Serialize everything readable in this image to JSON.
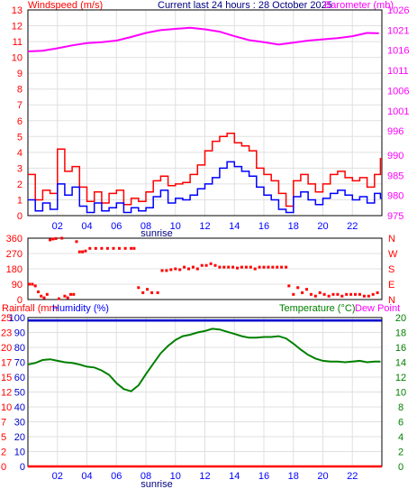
{
  "header": {
    "current_label": "Current last 24 hours : 28 October 2025"
  },
  "colors": {
    "wind_avg": "#0000ff",
    "wind_gust": "#ff0000",
    "barometer": "#ff00ff",
    "direction": "#ff0000",
    "temperature": "#008000",
    "dewpoint": "#ff00ff",
    "humidity": "#0000cc",
    "rainfall": "#ff0000",
    "axis_left_top": "#ff0000",
    "axis_left_bottom": "#0000ff",
    "axis_right_green": "#008000"
  },
  "chart_data": [
    {
      "type": "line",
      "name": "wind-barometer",
      "title": "Windspeed (m/s)",
      "title_right": "Barometer (mb)",
      "x_unit": "hour",
      "x_ticks": [
        "02",
        "04",
        "06",
        "08",
        "10",
        "12",
        "14",
        "16",
        "18",
        "20",
        "22"
      ],
      "x_annotation": "sunrise",
      "y_left_ticks": [
        0,
        1,
        2,
        3,
        4,
        5,
        6,
        7,
        8,
        9,
        10,
        11,
        12,
        13
      ],
      "y_left_range": [
        0,
        13
      ],
      "y_right_ticks": [
        975,
        980,
        985,
        990,
        996,
        1001,
        1006,
        1011,
        1016,
        1021,
        1026
      ],
      "y_right_range": [
        975,
        1026
      ],
      "series": [
        {
          "name": "Barometer",
          "axis": "right",
          "x": [
            0,
            1,
            2,
            3,
            4,
            5,
            6,
            7,
            8,
            9,
            10,
            11,
            12,
            13,
            14,
            15,
            16,
            17,
            18,
            19,
            20,
            21,
            22,
            23,
            23.8
          ],
          "y": [
            1015.7,
            1015.9,
            1016.5,
            1017.2,
            1017.8,
            1018.0,
            1018.4,
            1019.3,
            1020.3,
            1021.0,
            1021.3,
            1021.6,
            1021.2,
            1020.6,
            1019.5,
            1018.5,
            1018.0,
            1017.4,
            1017.9,
            1018.4,
            1018.7,
            1019.0,
            1019.5,
            1020.3,
            1020.2
          ]
        },
        {
          "name": "Windspeed",
          "axis": "left",
          "x": [
            0.0,
            0.5,
            1.0,
            1.5,
            2.0,
            2.5,
            3.0,
            3.5,
            4.0,
            4.5,
            5.0,
            5.5,
            6.0,
            6.5,
            7.0,
            7.5,
            8.0,
            8.5,
            9.0,
            9.5,
            10.0,
            10.5,
            11.0,
            11.5,
            12.0,
            12.5,
            13.0,
            13.5,
            14.0,
            14.5,
            15.0,
            15.5,
            16.0,
            16.5,
            17.0,
            17.5,
            18.0,
            18.5,
            19.0,
            19.5,
            20.0,
            20.5,
            21.0,
            21.5,
            22.0,
            22.5,
            23.0,
            23.5,
            23.9
          ],
          "y": [
            1.0,
            0.3,
            0.8,
            0.4,
            2.0,
            1.3,
            1.8,
            0.6,
            0.2,
            0.8,
            0.3,
            0.5,
            0.8,
            0.2,
            0.5,
            0.3,
            0.5,
            1.2,
            1.6,
            0.8,
            1.1,
            1.0,
            1.3,
            1.7,
            2.0,
            2.4,
            3.0,
            3.4,
            3.1,
            2.8,
            2.5,
            1.8,
            1.3,
            1.0,
            0.4,
            0.2,
            1.2,
            1.5,
            1.0,
            0.7,
            1.1,
            1.4,
            1.6,
            1.3,
            1.0,
            1.2,
            0.8,
            1.4,
            1.1
          ]
        },
        {
          "name": "Gust",
          "axis": "left",
          "x": [
            0.0,
            0.5,
            1.0,
            1.5,
            2.0,
            2.5,
            3.0,
            3.5,
            4.0,
            4.5,
            5.0,
            5.5,
            6.0,
            6.5,
            7.0,
            7.5,
            8.0,
            8.5,
            9.0,
            9.5,
            10.0,
            10.5,
            11.0,
            11.5,
            12.0,
            12.5,
            13.0,
            13.5,
            14.0,
            14.5,
            15.0,
            15.5,
            16.0,
            16.5,
            17.0,
            17.5,
            18.0,
            18.5,
            19.0,
            19.5,
            20.0,
            20.5,
            21.0,
            21.5,
            22.0,
            22.5,
            23.0,
            23.5,
            23.9
          ],
          "y": [
            2.6,
            1.0,
            1.6,
            1.4,
            4.2,
            2.8,
            3.1,
            1.8,
            0.9,
            1.5,
            0.8,
            1.4,
            1.6,
            0.7,
            1.1,
            0.9,
            1.5,
            2.2,
            2.5,
            1.9,
            2.0,
            2.1,
            2.6,
            3.2,
            4.1,
            4.7,
            5.0,
            5.2,
            4.6,
            4.4,
            4.1,
            3.0,
            2.6,
            2.2,
            1.4,
            0.6,
            2.2,
            2.6,
            2.0,
            1.5,
            2.0,
            2.6,
            2.8,
            2.4,
            2.2,
            2.4,
            1.8,
            2.6,
            3.6
          ]
        }
      ]
    },
    {
      "type": "scatter",
      "name": "wind-direction",
      "x_unit": "hour",
      "y_left_ticks": [
        0,
        90,
        180,
        270,
        360
      ],
      "y_left_range": [
        0,
        360
      ],
      "y_right_labels": [
        "N",
        "E",
        "S",
        "W",
        "N"
      ],
      "series": [
        {
          "name": "Direction",
          "x": [
            0.1,
            0.3,
            0.5,
            0.7,
            0.9,
            1.1,
            1.3,
            1.5,
            1.7,
            1.9,
            2.1,
            2.3,
            2.5,
            2.7,
            2.9,
            3.1,
            3.3,
            3.5,
            3.7,
            3.9,
            4.2,
            4.6,
            5.0,
            5.4,
            5.8,
            6.2,
            6.6,
            7.0,
            7.2,
            7.5,
            7.8,
            8.1,
            8.4,
            8.8,
            9.1,
            9.4,
            9.7,
            10.0,
            10.3,
            10.6,
            10.9,
            11.2,
            11.5,
            11.8,
            12.1,
            12.4,
            12.7,
            13.0,
            13.3,
            13.6,
            13.9,
            14.2,
            14.5,
            14.8,
            15.1,
            15.4,
            15.7,
            16.0,
            16.3,
            16.6,
            16.9,
            17.2,
            17.5,
            17.7,
            18.0,
            18.3,
            18.6,
            18.9,
            19.2,
            19.5,
            19.8,
            20.1,
            20.4,
            20.7,
            21.0,
            21.3,
            21.6,
            21.9,
            22.2,
            22.5,
            22.8,
            23.1,
            23.4,
            23.7
          ],
          "y": [
            90,
            90,
            80,
            45,
            20,
            10,
            30,
            350,
            355,
            358,
            5,
            360,
            20,
            10,
            30,
            30,
            340,
            280,
            280,
            285,
            300,
            300,
            300,
            300,
            300,
            300,
            300,
            300,
            300,
            70,
            40,
            60,
            40,
            40,
            170,
            170,
            175,
            180,
            175,
            190,
            180,
            190,
            180,
            200,
            200,
            210,
            200,
            190,
            190,
            190,
            190,
            185,
            190,
            190,
            190,
            180,
            190,
            190,
            190,
            190,
            190,
            190,
            190,
            80,
            30,
            70,
            40,
            60,
            30,
            20,
            40,
            30,
            20,
            30,
            30,
            20,
            30,
            30,
            30,
            30,
            20,
            20,
            30,
            40
          ]
        }
      ]
    },
    {
      "type": "line",
      "name": "rain-humidity-temperature",
      "title": "Rainfall (mm",
      "title_humidity": "Humidity (%)",
      "title_right": "Temperature (°C)",
      "title_right_2": "Dew Point",
      "x_ticks": [
        "02",
        "04",
        "06",
        "08",
        "10",
        "12",
        "14",
        "16",
        "18",
        "20",
        "22"
      ],
      "x_annotation": "sunrise",
      "y_left_rain_ticks": [
        0,
        2,
        5,
        7,
        10,
        12,
        15,
        17,
        20,
        23,
        25
      ],
      "y_left_rain_range": [
        0,
        25
      ],
      "y_left_humidity_ticks": [
        0,
        10,
        20,
        30,
        40,
        50,
        60,
        70,
        80,
        90,
        100
      ],
      "y_left_humidity_range": [
        0,
        100
      ],
      "y_right_ticks": [
        0,
        2,
        4,
        6,
        8,
        10,
        12,
        14,
        16,
        18,
        20
      ],
      "y_right_range": [
        0,
        20
      ],
      "series": [
        {
          "name": "Temperature",
          "axis": "right",
          "x": [
            0.0,
            0.5,
            1.0,
            1.5,
            2.0,
            2.5,
            3.0,
            3.5,
            4.0,
            4.5,
            5.0,
            5.5,
            6.0,
            6.5,
            7.0,
            7.5,
            8.0,
            8.5,
            9.0,
            9.5,
            10.0,
            10.5,
            11.0,
            11.5,
            12.0,
            12.5,
            13.0,
            13.5,
            14.0,
            14.5,
            15.0,
            15.5,
            16.0,
            16.5,
            17.0,
            17.5,
            18.0,
            18.5,
            19.0,
            19.5,
            20.0,
            20.5,
            21.0,
            21.5,
            22.0,
            22.5,
            23.0,
            23.5,
            23.9
          ],
          "y": [
            13.7,
            13.9,
            14.3,
            14.4,
            14.2,
            14.0,
            13.9,
            13.7,
            13.4,
            13.3,
            12.9,
            12.3,
            11.2,
            10.4,
            10.1,
            10.9,
            12.4,
            13.8,
            15.2,
            16.2,
            17.0,
            17.5,
            17.7,
            18.0,
            18.2,
            18.5,
            18.4,
            18.1,
            17.8,
            17.5,
            17.3,
            17.3,
            17.4,
            17.4,
            17.5,
            17.2,
            16.5,
            15.7,
            15.0,
            14.5,
            14.2,
            14.1,
            14.1,
            14.0,
            14.1,
            14.2,
            14.0,
            14.1,
            14.1
          ]
        },
        {
          "name": "Humidity",
          "axis": "left_humidity",
          "x": [
            0,
            24
          ],
          "y": [
            98,
            98
          ]
        },
        {
          "name": "Rainfall",
          "axis": "left_rain",
          "x": [
            0,
            24
          ],
          "y": [
            0,
            0
          ]
        }
      ]
    }
  ]
}
